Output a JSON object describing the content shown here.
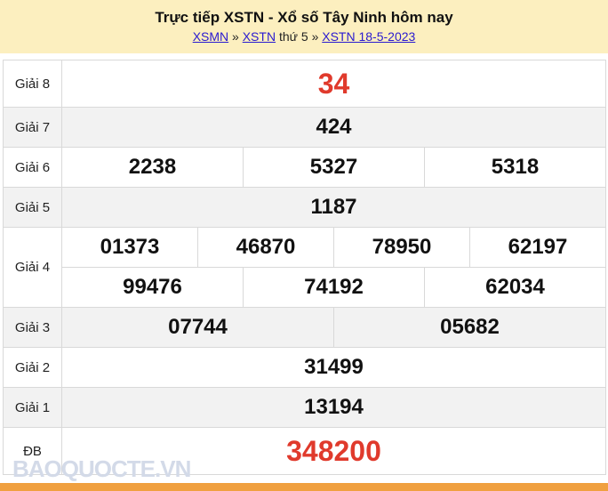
{
  "header": {
    "title": "Trực tiếp XSTN - Xổ số Tây Ninh hôm nay",
    "crumbs": {
      "link1": "XSMN",
      "sep1": " » ",
      "link2": "XSTN",
      "day": " thứ 5 » ",
      "link3": "XSTN 18-5-2023"
    }
  },
  "prizes": {
    "g8": {
      "label": "Giải 8",
      "values": [
        "34"
      ]
    },
    "g7": {
      "label": "Giải 7",
      "values": [
        "424"
      ]
    },
    "g6": {
      "label": "Giải 6",
      "values": [
        "2238",
        "5327",
        "5318"
      ]
    },
    "g5": {
      "label": "Giải 5",
      "values": [
        "1187"
      ]
    },
    "g4": {
      "label": "Giải 4",
      "values": [
        "01373",
        "46870",
        "78950",
        "62197",
        "99476",
        "74192",
        "62034"
      ]
    },
    "g3": {
      "label": "Giải 3",
      "values": [
        "07744",
        "05682"
      ]
    },
    "g2": {
      "label": "Giải 2",
      "values": [
        "31499"
      ]
    },
    "g1": {
      "label": "Giải 1",
      "values": [
        "13194"
      ]
    },
    "db": {
      "label": "ĐB",
      "values": [
        "348200"
      ]
    }
  },
  "watermark": "BAOQUOCTE.VN",
  "colors": {
    "header_bg": "#fcefbf",
    "highlight": "#e03a2c",
    "footer_bar": "#f0a040"
  }
}
